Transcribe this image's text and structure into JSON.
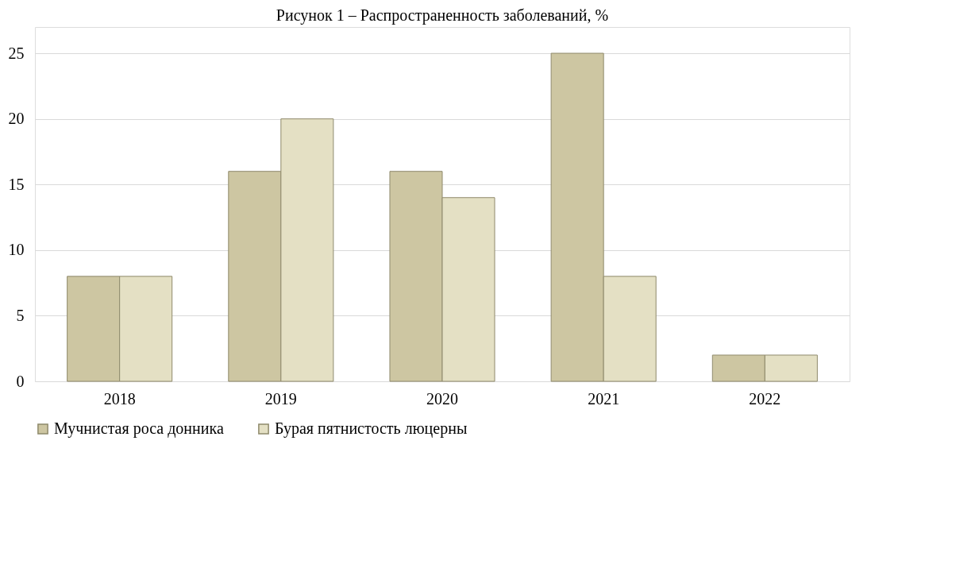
{
  "chart_data": {
    "type": "bar",
    "title": "Рисунок 1 – Распространенность заболеваний, %",
    "categories": [
      "2018",
      "2019",
      "2020",
      "2021",
      "2022"
    ],
    "series": [
      {
        "name": "Мучнистая роса донника",
        "color": "#cdc6a2",
        "values": [
          8,
          16,
          16,
          25,
          2
        ]
      },
      {
        "name": "Бурая пятнистость люцерны",
        "color": "#e4e0c4",
        "values": [
          8,
          20,
          14,
          8,
          2
        ]
      }
    ],
    "ylim": [
      0,
      27
    ],
    "yticks": [
      0,
      5,
      10,
      15,
      20,
      25
    ],
    "grid": "y",
    "legend": "bottom"
  }
}
